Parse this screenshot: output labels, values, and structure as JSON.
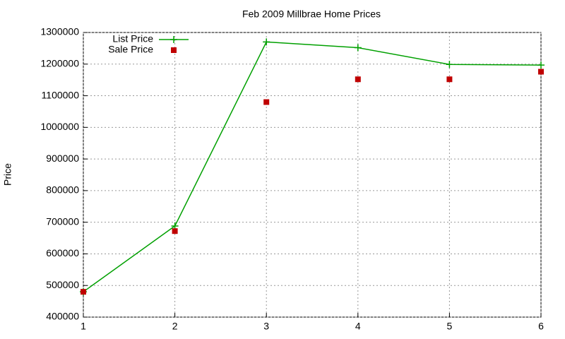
{
  "chart_data": {
    "type": "line",
    "title": "Feb 2009 Millbrae Home Prices",
    "y_label": "Price",
    "x": [
      1,
      2,
      3,
      4,
      5,
      6
    ],
    "series": [
      {
        "name": "List Price",
        "color": "#00a000",
        "style": "linespoints",
        "values": [
          480000,
          688000,
          1270000,
          1252000,
          1199000,
          1197000
        ]
      },
      {
        "name": "Sale Price",
        "color": "#c00000",
        "style": "points",
        "values": [
          480000,
          672000,
          1080000,
          1152000,
          1152000,
          1176000
        ]
      }
    ],
    "xlim": [
      1,
      6
    ],
    "xticks": [
      1,
      2,
      3,
      4,
      5,
      6
    ],
    "ylim": [
      400000,
      1300000
    ],
    "yticks": [
      400000,
      500000,
      600000,
      700000,
      800000,
      900000,
      1000000,
      1100000,
      1200000,
      1300000
    ],
    "grid": true,
    "legend": "top-left"
  }
}
